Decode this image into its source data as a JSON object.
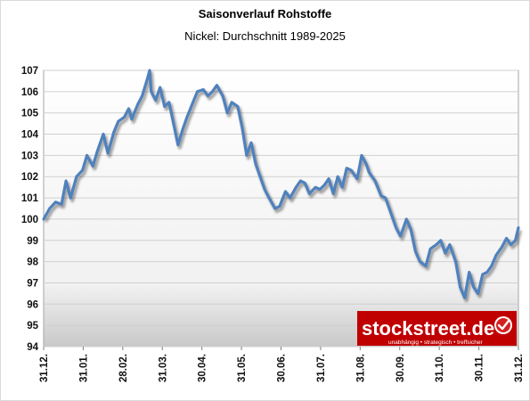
{
  "chart_data": {
    "type": "line",
    "title": "Saisonverlauf Rohstoffe",
    "subtitle": "Nickel: Durchschnitt 1989-2025",
    "xlabel": "",
    "ylabel": "",
    "ylim": [
      94,
      107
    ],
    "yticks": [
      94,
      95,
      96,
      97,
      98,
      99,
      100,
      101,
      102,
      103,
      104,
      105,
      106,
      107
    ],
    "xticks": [
      "31.12.",
      "31.01.",
      "28.02.",
      "31.03.",
      "30.04.",
      "31.05.",
      "30.06.",
      "31.07.",
      "31.08.",
      "30.09.",
      "31.10.",
      "30.11.",
      "31.12."
    ],
    "grid": true,
    "legend": "none",
    "line_color": "#4f81bd",
    "watermark": {
      "text": "stockstreet.de",
      "tagline": "unabhängig • strategisch • treffsicher",
      "color": "#c00000"
    },
    "series": [
      {
        "values": [
          [
            0,
            100.0
          ],
          [
            4,
            100.5
          ],
          [
            8,
            100.8
          ],
          [
            12,
            100.7
          ],
          [
            15,
            101.8
          ],
          [
            18,
            101.0
          ],
          [
            22,
            102.0
          ],
          [
            26,
            102.3
          ],
          [
            29,
            103.0
          ],
          [
            33,
            102.5
          ],
          [
            36,
            103.2
          ],
          [
            40,
            104.0
          ],
          [
            43,
            103.1
          ],
          [
            47,
            104.1
          ],
          [
            50,
            104.6
          ],
          [
            54,
            104.8
          ],
          [
            57,
            105.2
          ],
          [
            59,
            104.7
          ],
          [
            63,
            105.4
          ],
          [
            66,
            105.8
          ],
          [
            69,
            106.5
          ],
          [
            71,
            107.0
          ],
          [
            72,
            106.0
          ],
          [
            75,
            105.6
          ],
          [
            78,
            106.2
          ],
          [
            81,
            105.3
          ],
          [
            84,
            105.5
          ],
          [
            87,
            104.5
          ],
          [
            90,
            103.5
          ],
          [
            93,
            104.2
          ],
          [
            96,
            104.8
          ],
          [
            100,
            105.5
          ],
          [
            103,
            106.0
          ],
          [
            107,
            106.1
          ],
          [
            110,
            105.8
          ],
          [
            113,
            106.0
          ],
          [
            116,
            106.3
          ],
          [
            120,
            105.8
          ],
          [
            123,
            105.0
          ],
          [
            126,
            105.5
          ],
          [
            130,
            105.3
          ],
          [
            133,
            104.3
          ],
          [
            136,
            103.0
          ],
          [
            139,
            103.6
          ],
          [
            142,
            102.6
          ],
          [
            145,
            102.0
          ],
          [
            148,
            101.4
          ],
          [
            151,
            101.0
          ],
          [
            155,
            100.5
          ],
          [
            158,
            100.6
          ],
          [
            162,
            101.3
          ],
          [
            165,
            101.0
          ],
          [
            169,
            101.5
          ],
          [
            172,
            101.8
          ],
          [
            175,
            101.7
          ],
          [
            178,
            101.2
          ],
          [
            182,
            101.5
          ],
          [
            185,
            101.4
          ],
          [
            188,
            101.6
          ],
          [
            191,
            101.9
          ],
          [
            194,
            101.2
          ],
          [
            197,
            102.0
          ],
          [
            200,
            101.5
          ],
          [
            203,
            102.4
          ],
          [
            206,
            102.3
          ],
          [
            210,
            101.9
          ],
          [
            213,
            103.0
          ],
          [
            216,
            102.6
          ],
          [
            218,
            102.2
          ],
          [
            222,
            101.8
          ],
          [
            226,
            101.1
          ],
          [
            229,
            101.0
          ],
          [
            232,
            100.4
          ],
          [
            236,
            99.6
          ],
          [
            239,
            99.2
          ],
          [
            243,
            100.0
          ],
          [
            246,
            99.5
          ],
          [
            249,
            98.5
          ],
          [
            252,
            98.0
          ],
          [
            256,
            97.8
          ],
          [
            259,
            98.6
          ],
          [
            263,
            98.8
          ],
          [
            266,
            99.0
          ],
          [
            269,
            98.4
          ],
          [
            272,
            98.8
          ],
          [
            276,
            98.0
          ],
          [
            279,
            96.8
          ],
          [
            282,
            96.3
          ],
          [
            285,
            97.5
          ],
          [
            288,
            96.8
          ],
          [
            291,
            96.5
          ],
          [
            294,
            97.4
          ],
          [
            297,
            97.5
          ],
          [
            300,
            97.8
          ],
          [
            303,
            98.3
          ],
          [
            307,
            98.7
          ],
          [
            310,
            99.1
          ],
          [
            313,
            98.8
          ],
          [
            316,
            99.0
          ],
          [
            318,
            99.6
          ]
        ]
      }
    ]
  }
}
